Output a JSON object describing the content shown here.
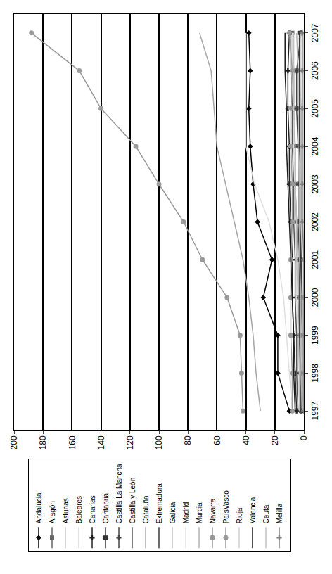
{
  "chart_data": {
    "type": "line",
    "categories": [
      "1997",
      "1998",
      "1999",
      "2000",
      "2001",
      "2002",
      "2003",
      "2004",
      "2005",
      "2006",
      "2007"
    ],
    "ylim": [
      0,
      200
    ],
    "yticks": [
      0,
      20,
      40,
      60,
      80,
      100,
      120,
      140,
      160,
      180,
      200
    ],
    "grid": true,
    "legend": "left",
    "series": [
      {
        "name": "Andalucia",
        "color": "#000000",
        "marker": "diamond",
        "line_style": "solid",
        "values": [
          10,
          18,
          18,
          28,
          22,
          32,
          35,
          37,
          38,
          37,
          38
        ]
      },
      {
        "name": "Aragón",
        "color": "#666666",
        "marker": "square",
        "line_style": "solid",
        "values": [
          2,
          3,
          3,
          4,
          4,
          5,
          6,
          6,
          7,
          7,
          8
        ]
      },
      {
        "name": "Asturias",
        "color": "#cccccc",
        "marker": "none",
        "line_style": "solid",
        "values": [
          1,
          1,
          2,
          2,
          2,
          3,
          3,
          3,
          4,
          4,
          4
        ]
      },
      {
        "name": "Baleares",
        "color": "#d9d9d9",
        "marker": "none",
        "line_style": "solid",
        "values": [
          3,
          4,
          4,
          5,
          5,
          6,
          6,
          7,
          7,
          8,
          8
        ]
      },
      {
        "name": "Canarias",
        "color": "#222222",
        "marker": "cross",
        "line_style": "solid",
        "values": [
          5,
          6,
          7,
          8,
          8,
          9,
          10,
          10,
          11,
          11,
          10
        ]
      },
      {
        "name": "Cantabria",
        "color": "#333333",
        "marker": "square",
        "line_style": "solid",
        "values": [
          1,
          1,
          1,
          2,
          2,
          2,
          2,
          3,
          3,
          3,
          3
        ]
      },
      {
        "name": "Castilla La Mancha",
        "color": "#444444",
        "marker": "cross",
        "line_style": "solid",
        "values": [
          2,
          2,
          3,
          3,
          3,
          4,
          4,
          4,
          5,
          5,
          2
        ]
      },
      {
        "name": "Castilla y León",
        "color": "#555555",
        "marker": "none",
        "line_style": "solid",
        "values": [
          4,
          5,
          5,
          6,
          6,
          7,
          7,
          8,
          8,
          9,
          9
        ]
      },
      {
        "name": "Cataluña",
        "color": "#a6a6a6",
        "marker": "none",
        "line_style": "solid",
        "values": [
          30,
          33,
          35,
          38,
          42,
          48,
          54,
          60,
          62,
          64,
          72
        ]
      },
      {
        "name": "Extremadura",
        "color": "#3a3a3a",
        "marker": "none",
        "line_style": "solid",
        "values": [
          1,
          1,
          1,
          1,
          2,
          2,
          2,
          2,
          2,
          3,
          3
        ]
      },
      {
        "name": "Galicia",
        "color": "#bfbfbf",
        "marker": "none",
        "line_style": "solid",
        "values": [
          3,
          3,
          4,
          4,
          5,
          5,
          6,
          6,
          7,
          7,
          7
        ]
      },
      {
        "name": "Madrid",
        "color": "#e0e0e0",
        "marker": "none",
        "line_style": "solid",
        "values": [
          8,
          10,
          12,
          14,
          18,
          24,
          34,
          40,
          40,
          40,
          40
        ]
      },
      {
        "name": "Murcia",
        "color": "#b3b3b3",
        "marker": "none",
        "line_style": "solid",
        "values": [
          1,
          2,
          2,
          2,
          3,
          3,
          3,
          4,
          4,
          4,
          5
        ]
      },
      {
        "name": "Navarra",
        "color": "#999999",
        "marker": "circle",
        "line_style": "solid",
        "values": [
          8,
          8,
          9,
          9,
          9,
          8,
          8,
          9,
          9,
          8,
          10
        ]
      },
      {
        "name": "PaísVasco",
        "color": "#9a9a9a",
        "marker": "circle",
        "line_style": "solid",
        "values": [
          42,
          43,
          44,
          53,
          70,
          83,
          100,
          116,
          140,
          155,
          188
        ]
      },
      {
        "name": "Rioja",
        "color": "#d0d0d0",
        "marker": "none",
        "line_style": "solid",
        "values": [
          1,
          1,
          1,
          1,
          1,
          2,
          2,
          2,
          2,
          2,
          2
        ]
      },
      {
        "name": "Valencia",
        "color": "#1a1a1a",
        "marker": "none",
        "line_style": "solid",
        "values": [
          6,
          7,
          7,
          8,
          9,
          10,
          11,
          12,
          12,
          13,
          13
        ]
      },
      {
        "name": "Ceuta",
        "color": "#c0c0c0",
        "marker": "none",
        "line_style": "solid",
        "values": [
          0,
          0,
          0,
          0,
          0,
          0,
          0,
          0,
          0,
          0,
          0
        ]
      },
      {
        "name": "Melilla",
        "color": "#808080",
        "marker": "cross",
        "line_style": "solid",
        "values": [
          0,
          0,
          0,
          0,
          0,
          1,
          1,
          1,
          1,
          1,
          1
        ]
      }
    ]
  }
}
